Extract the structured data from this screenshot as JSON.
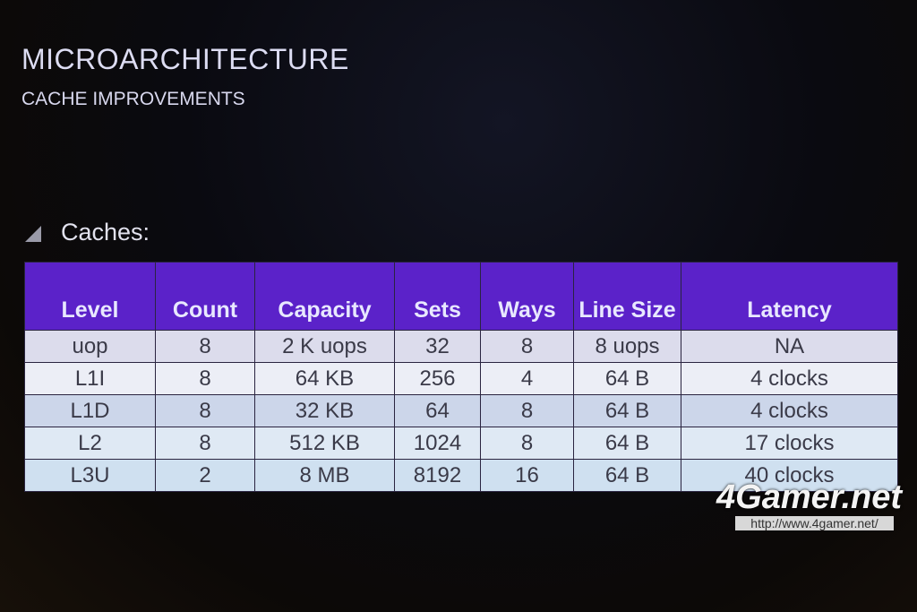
{
  "header": {
    "title": "MICROARCHITECTURE",
    "subtitle": "CACHE IMPROVEMENTS"
  },
  "section": {
    "label": "Caches:"
  },
  "table": {
    "columns": [
      "Level",
      "Count",
      "Capacity",
      "Sets",
      "Ways",
      "Line Size",
      "Latency"
    ],
    "rows": [
      [
        "uop",
        "8",
        "2 K uops",
        "32",
        "8",
        "8 uops",
        "NA"
      ],
      [
        "L1I",
        "8",
        "64 KB",
        "256",
        "4",
        "64 B",
        "4 clocks"
      ],
      [
        "L1D",
        "8",
        "32 KB",
        "64",
        "8",
        "64 B",
        "4 clocks"
      ],
      [
        "L2",
        "8",
        "512 KB",
        "1024",
        "8",
        "64 B",
        "17 clocks"
      ],
      [
        "L3U",
        "2",
        "8 MB",
        "8192",
        "16",
        "64 B",
        "40 clocks"
      ]
    ]
  },
  "watermark": {
    "logo": "4Gamer.net",
    "url": "http://www.4gamer.net/"
  }
}
